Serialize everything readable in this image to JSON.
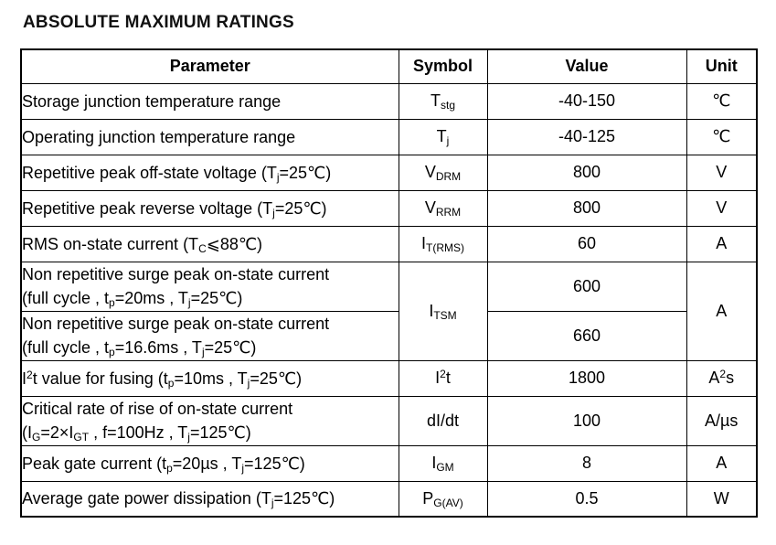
{
  "section_title": "ABSOLUTE MAXIMUM RATINGS",
  "table": {
    "headers": [
      "Parameter",
      "Symbol",
      "Value",
      "Unit"
    ],
    "rows": [
      {
        "param": [
          {
            "t": "Storage junction temperature range"
          }
        ],
        "symbol": [
          {
            "t": "T"
          },
          {
            "s": "stg"
          }
        ],
        "value": "-40-150",
        "unit": [
          {
            "t": "℃"
          }
        ]
      },
      {
        "param": [
          {
            "t": "Operating junction temperature range"
          }
        ],
        "symbol": [
          {
            "t": "T"
          },
          {
            "s": "j"
          }
        ],
        "value": "-40-125",
        "unit": [
          {
            "t": "℃"
          }
        ]
      },
      {
        "param": [
          {
            "t": "Repetitive peak off-state voltage (T"
          },
          {
            "s": "j"
          },
          {
            "t": "=25℃)"
          }
        ],
        "symbol": [
          {
            "t": "V"
          },
          {
            "s": "DRM"
          }
        ],
        "value": "800",
        "unit": [
          {
            "t": "V"
          }
        ]
      },
      {
        "param": [
          {
            "t": "Repetitive peak reverse voltage (T"
          },
          {
            "s": "j"
          },
          {
            "t": "=25℃)"
          }
        ],
        "symbol": [
          {
            "t": "V"
          },
          {
            "s": "RRM"
          }
        ],
        "value": "800",
        "unit": [
          {
            "t": "V"
          }
        ]
      },
      {
        "param": [
          {
            "t": "RMS on-state current (T"
          },
          {
            "s": "C"
          },
          {
            "t": "⩽88℃)"
          }
        ],
        "symbol": [
          {
            "t": "I"
          },
          {
            "s": "T(RMS)"
          }
        ],
        "value": "60",
        "unit": [
          {
            "t": "A"
          }
        ]
      },
      {
        "param": [
          {
            "t": "Non repetitive surge peak on-state current"
          },
          {
            "br": true
          },
          {
            "t": "(full cycle , t"
          },
          {
            "s": "p"
          },
          {
            "t": "=20ms , T"
          },
          {
            "s": "j"
          },
          {
            "t": "=25℃)"
          }
        ],
        "symbol": [
          {
            "t": "I"
          },
          {
            "s": "TSM"
          }
        ],
        "value": "600",
        "unit": [
          {
            "t": "A"
          }
        ]
      },
      {
        "param": [
          {
            "t": "Non repetitive surge peak on-state current"
          },
          {
            "br": true
          },
          {
            "t": "(full cycle , t"
          },
          {
            "s": "p"
          },
          {
            "t": "=16.6ms , T"
          },
          {
            "s": "j"
          },
          {
            "t": "=25℃)"
          }
        ],
        "value": "660"
      },
      {
        "param": [
          {
            "t": "I"
          },
          {
            "sup": "2"
          },
          {
            "t": "t value for fusing (t"
          },
          {
            "s": "p"
          },
          {
            "t": "=10ms , T"
          },
          {
            "s": "j"
          },
          {
            "t": "=25℃)"
          }
        ],
        "symbol": [
          {
            "t": "I"
          },
          {
            "sup": "2"
          },
          {
            "t": "t"
          }
        ],
        "value": "1800",
        "unit": [
          {
            "t": "A"
          },
          {
            "sup": "2"
          },
          {
            "t": "s"
          }
        ]
      },
      {
        "param": [
          {
            "t": "Critical rate of rise of on-state current"
          },
          {
            "br": true
          },
          {
            "t": "(I"
          },
          {
            "s": "G"
          },
          {
            "t": "=2×I"
          },
          {
            "s": "GT"
          },
          {
            "t": " , f=100Hz , T"
          },
          {
            "s": "j"
          },
          {
            "t": "=125℃)"
          }
        ],
        "symbol": [
          {
            "t": "dI/dt"
          }
        ],
        "value": "100",
        "unit": [
          {
            "t": "A/µs"
          }
        ]
      },
      {
        "param": [
          {
            "t": "Peak gate current (t"
          },
          {
            "s": "p"
          },
          {
            "t": "=20µs , T"
          },
          {
            "s": "j"
          },
          {
            "t": "=125℃)"
          }
        ],
        "symbol": [
          {
            "t": "I"
          },
          {
            "s": "GM"
          }
        ],
        "value": "8",
        "unit": [
          {
            "t": "A"
          }
        ]
      },
      {
        "param": [
          {
            "t": "Average gate power dissipation (T"
          },
          {
            "s": "j"
          },
          {
            "t": "=125℃)"
          }
        ],
        "symbol": [
          {
            "t": "P"
          },
          {
            "s": "G(AV)"
          }
        ],
        "value": "0.5",
        "unit": [
          {
            "t": "W"
          }
        ]
      }
    ]
  }
}
